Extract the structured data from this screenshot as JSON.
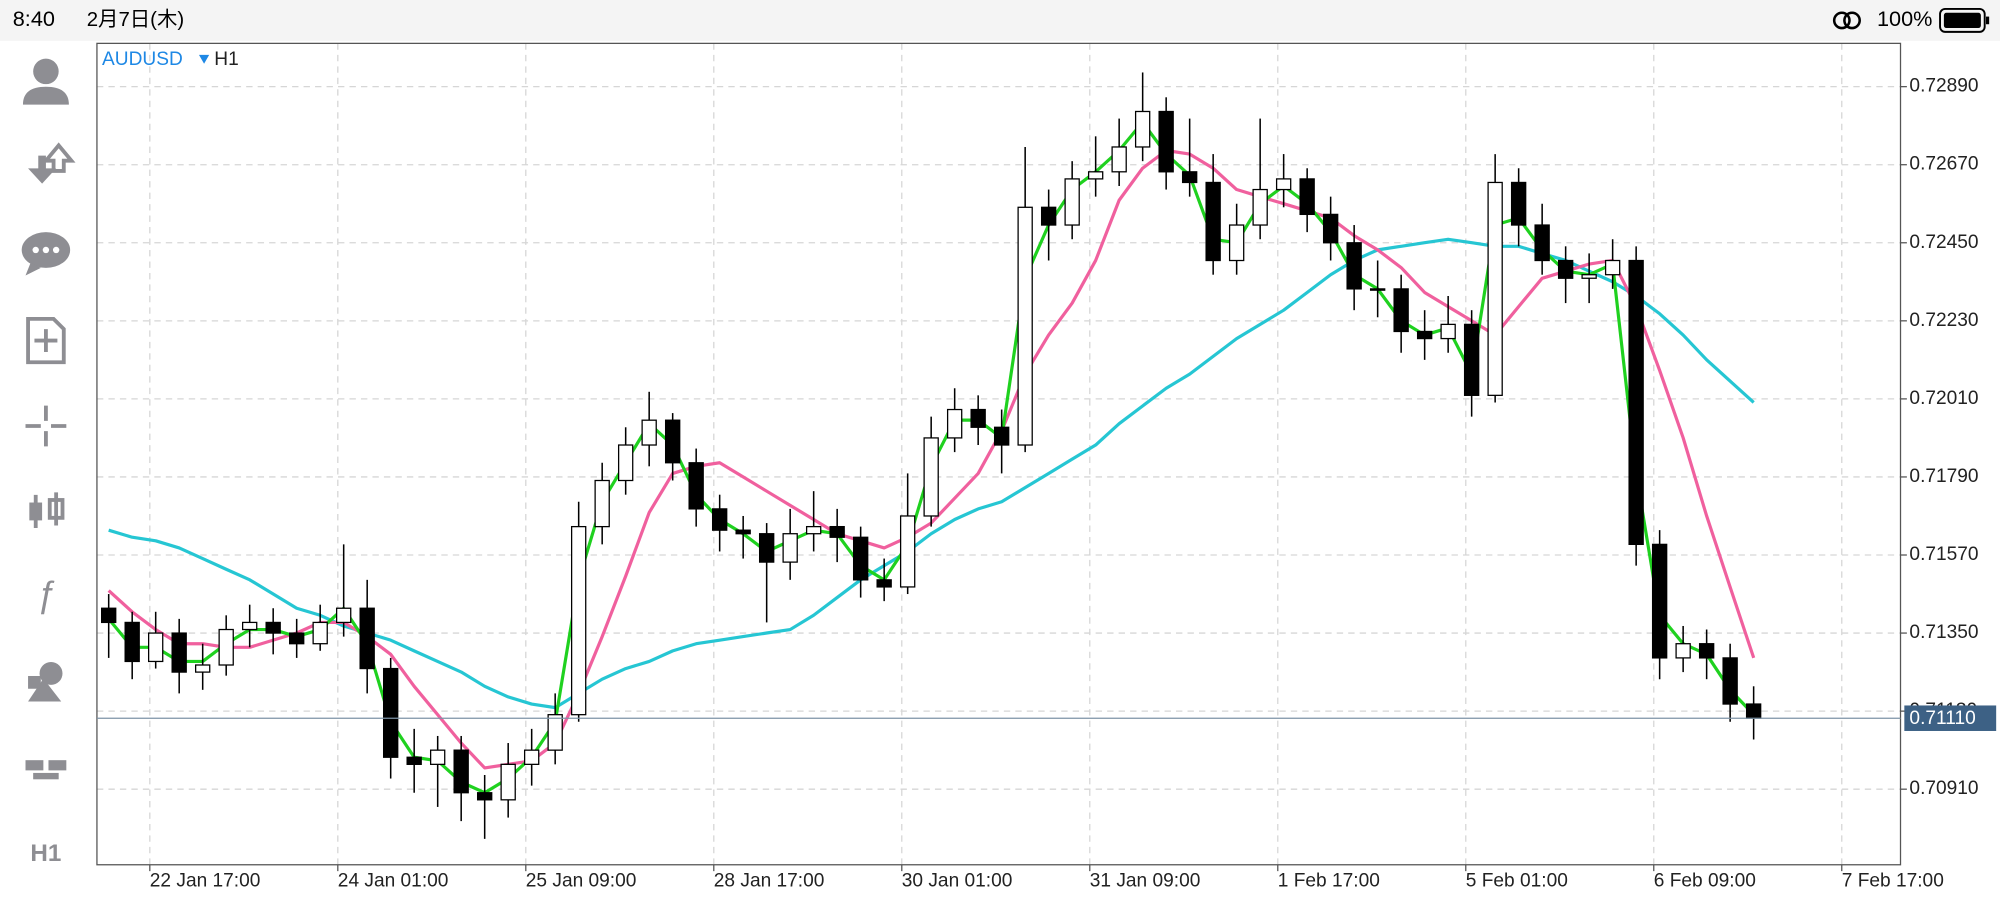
{
  "status_bar": {
    "time": "8:40",
    "date": "2月7日(木)",
    "battery": "100%"
  },
  "toolbar": {
    "timeframe": "H1"
  },
  "chart_data": {
    "type": "candlestick",
    "symbol": "AUDUSD",
    "timeframe": "H1",
    "grid": true,
    "xlim": [
      0,
      76.75
    ],
    "xticks": [
      {
        "value": 2.25,
        "label": "22 Jan 17:00"
      },
      {
        "value": 10.25,
        "label": "24 Jan 01:00"
      },
      {
        "value": 18.25,
        "label": "25 Jan 09:00"
      },
      {
        "value": 26.25,
        "label": "28 Jan 17:00"
      },
      {
        "value": 34.25,
        "label": "30 Jan 01:00"
      },
      {
        "value": 42.25,
        "label": "31 Jan 09:00"
      },
      {
        "value": 50.25,
        "label": "1 Feb 17:00"
      },
      {
        "value": 58.25,
        "label": "5 Feb 01:00"
      },
      {
        "value": 66.25,
        "label": "6 Feb 09:00"
      },
      {
        "value": 74.25,
        "label": "7 Feb 17:00"
      }
    ],
    "ylim": [
      0.70697,
      0.73012
    ],
    "yticks": [
      {
        "value": 0.7289,
        "label": "0.72890"
      },
      {
        "value": 0.7267,
        "label": "0.72670"
      },
      {
        "value": 0.7245,
        "label": "0.72450"
      },
      {
        "value": 0.7223,
        "label": "0.72230"
      },
      {
        "value": 0.7201,
        "label": "0.72010"
      },
      {
        "value": 0.7179,
        "label": "0.71790"
      },
      {
        "value": 0.7157,
        "label": "0.71570"
      },
      {
        "value": 0.7135,
        "label": "0.71350"
      },
      {
        "value": 0.7113,
        "label": "0.71130"
      },
      {
        "value": 0.7091,
        "label": "0.70910"
      }
    ],
    "current_price": {
      "value": 0.7111,
      "label": "0.71110"
    },
    "ohlc": [
      [
        0.7142,
        0.7146,
        0.7128,
        0.7138
      ],
      [
        0.7138,
        0.7141,
        0.7122,
        0.7127
      ],
      [
        0.7127,
        0.7141,
        0.7125,
        0.7135
      ],
      [
        0.7135,
        0.7139,
        0.7118,
        0.7124
      ],
      [
        0.7124,
        0.7132,
        0.7119,
        0.7126
      ],
      [
        0.7126,
        0.714,
        0.7123,
        0.7136
      ],
      [
        0.7136,
        0.7143,
        0.7131,
        0.7138
      ],
      [
        0.7138,
        0.7142,
        0.7129,
        0.7135
      ],
      [
        0.7135,
        0.7139,
        0.7128,
        0.7132
      ],
      [
        0.7132,
        0.7143,
        0.713,
        0.7138
      ],
      [
        0.7138,
        0.716,
        0.7134,
        0.7142
      ],
      [
        0.7142,
        0.715,
        0.7118,
        0.7125
      ],
      [
        0.7125,
        0.7128,
        0.7094,
        0.71
      ],
      [
        0.71,
        0.7108,
        0.709,
        0.7098
      ],
      [
        0.7098,
        0.7106,
        0.7086,
        0.7102
      ],
      [
        0.7102,
        0.7106,
        0.7082,
        0.709
      ],
      [
        0.709,
        0.7095,
        0.7077,
        0.7088
      ],
      [
        0.7088,
        0.7104,
        0.7083,
        0.7098
      ],
      [
        0.7098,
        0.7108,
        0.7092,
        0.7102
      ],
      [
        0.7102,
        0.7118,
        0.7098,
        0.7112
      ],
      [
        0.7112,
        0.7172,
        0.711,
        0.7165
      ],
      [
        0.7165,
        0.7183,
        0.716,
        0.7178
      ],
      [
        0.7178,
        0.7193,
        0.7174,
        0.7188
      ],
      [
        0.7188,
        0.7203,
        0.7182,
        0.7195
      ],
      [
        0.7195,
        0.7197,
        0.7178,
        0.7183
      ],
      [
        0.7183,
        0.7187,
        0.7165,
        0.717
      ],
      [
        0.717,
        0.7174,
        0.7158,
        0.7164
      ],
      [
        0.7164,
        0.7168,
        0.7156,
        0.7163
      ],
      [
        0.7163,
        0.7166,
        0.7138,
        0.7155
      ],
      [
        0.7155,
        0.717,
        0.715,
        0.7163
      ],
      [
        0.7163,
        0.7175,
        0.7158,
        0.7165
      ],
      [
        0.7165,
        0.717,
        0.7155,
        0.7162
      ],
      [
        0.7162,
        0.7165,
        0.7145,
        0.715
      ],
      [
        0.715,
        0.7156,
        0.7144,
        0.7148
      ],
      [
        0.7148,
        0.718,
        0.7146,
        0.7168
      ],
      [
        0.7168,
        0.7196,
        0.7165,
        0.719
      ],
      [
        0.719,
        0.7204,
        0.7186,
        0.7198
      ],
      [
        0.7198,
        0.7202,
        0.7188,
        0.7193
      ],
      [
        0.7193,
        0.7198,
        0.718,
        0.7188
      ],
      [
        0.7188,
        0.7272,
        0.7186,
        0.7255
      ],
      [
        0.7255,
        0.726,
        0.724,
        0.725
      ],
      [
        0.725,
        0.7268,
        0.7246,
        0.7263
      ],
      [
        0.7263,
        0.7275,
        0.7258,
        0.7265
      ],
      [
        0.7265,
        0.728,
        0.7261,
        0.7272
      ],
      [
        0.7272,
        0.7293,
        0.7268,
        0.7282
      ],
      [
        0.7282,
        0.7286,
        0.726,
        0.7265
      ],
      [
        0.7265,
        0.728,
        0.7258,
        0.7262
      ],
      [
        0.7262,
        0.727,
        0.7236,
        0.724
      ],
      [
        0.724,
        0.7256,
        0.7236,
        0.725
      ],
      [
        0.725,
        0.728,
        0.7246,
        0.726
      ],
      [
        0.726,
        0.727,
        0.7255,
        0.7263
      ],
      [
        0.7263,
        0.7266,
        0.7248,
        0.7253
      ],
      [
        0.7253,
        0.7258,
        0.724,
        0.7245
      ],
      [
        0.7245,
        0.725,
        0.7226,
        0.7232
      ],
      [
        0.7232,
        0.724,
        0.7224,
        0.7232
      ],
      [
        0.7232,
        0.7236,
        0.7214,
        0.722
      ],
      [
        0.722,
        0.7226,
        0.7212,
        0.7218
      ],
      [
        0.7218,
        0.723,
        0.7214,
        0.7222
      ],
      [
        0.7222,
        0.7226,
        0.7196,
        0.7202
      ],
      [
        0.7202,
        0.727,
        0.72,
        0.7262
      ],
      [
        0.7262,
        0.7266,
        0.7244,
        0.725
      ],
      [
        0.725,
        0.7256,
        0.7236,
        0.724
      ],
      [
        0.724,
        0.7244,
        0.7228,
        0.7235
      ],
      [
        0.7235,
        0.7242,
        0.7228,
        0.7236
      ],
      [
        0.7236,
        0.7246,
        0.7232,
        0.724
      ],
      [
        0.724,
        0.7244,
        0.7154,
        0.716
      ],
      [
        0.716,
        0.7164,
        0.7122,
        0.7128
      ],
      [
        0.7128,
        0.7137,
        0.7124,
        0.7132
      ],
      [
        0.7132,
        0.7136,
        0.7122,
        0.7128
      ],
      [
        0.7128,
        0.7132,
        0.711,
        0.7115
      ],
      [
        0.7115,
        0.712,
        0.7105,
        0.7111
      ]
    ],
    "series": [
      {
        "color": "#26c6d3",
        "values": [
          0.7164,
          0.7162,
          0.7161,
          0.7159,
          0.7156,
          0.7153,
          0.715,
          0.7146,
          0.7142,
          0.714,
          0.7137,
          0.7135,
          0.7133,
          0.713,
          0.7127,
          0.7124,
          0.712,
          0.7117,
          0.7115,
          0.7114,
          0.7118,
          0.7122,
          0.7125,
          0.7127,
          0.713,
          0.7132,
          0.7133,
          0.7134,
          0.7135,
          0.7136,
          0.714,
          0.7145,
          0.715,
          0.7154,
          0.7158,
          0.7163,
          0.7167,
          0.717,
          0.7172,
          0.7176,
          0.718,
          0.7184,
          0.7188,
          0.7194,
          0.7199,
          0.7204,
          0.7208,
          0.7213,
          0.7218,
          0.7222,
          0.7226,
          0.7231,
          0.7236,
          0.724,
          0.7243,
          0.7244,
          0.7245,
          0.7246,
          0.7245,
          0.7244,
          0.7244,
          0.7242,
          0.724,
          0.7237,
          0.7234,
          0.723,
          0.7225,
          0.7219,
          0.7212,
          0.7206,
          0.72
        ]
      },
      {
        "color": "#f0609e",
        "values": [
          0.7147,
          0.7141,
          0.7136,
          0.7132,
          0.7132,
          0.7131,
          0.7131,
          0.7133,
          0.7135,
          0.7138,
          0.7138,
          0.7134,
          0.7129,
          0.712,
          0.7112,
          0.7104,
          0.7097,
          0.7098,
          0.7099,
          0.7104,
          0.7118,
          0.7134,
          0.7151,
          0.7169,
          0.718,
          0.7182,
          0.7183,
          0.7179,
          0.7175,
          0.7171,
          0.7167,
          0.7163,
          0.7161,
          0.7159,
          0.7162,
          0.7166,
          0.7173,
          0.718,
          0.7192,
          0.7208,
          0.7219,
          0.7228,
          0.724,
          0.7257,
          0.7266,
          0.7271,
          0.727,
          0.7266,
          0.726,
          0.7258,
          0.7256,
          0.7254,
          0.7252,
          0.7247,
          0.7243,
          0.7238,
          0.7231,
          0.7227,
          0.7223,
          0.7219,
          0.7227,
          0.7235,
          0.7237,
          0.7239,
          0.724,
          0.7227,
          0.7209,
          0.719,
          0.7168,
          0.7148,
          0.7128
        ]
      },
      {
        "color": "#1fd11f",
        "values": [
          0.7139,
          0.7131,
          0.7131,
          0.7127,
          0.7127,
          0.7132,
          0.7136,
          0.7136,
          0.7134,
          0.7136,
          0.7142,
          0.7132,
          0.711,
          0.71,
          0.7099,
          0.7093,
          0.709,
          0.7094,
          0.71,
          0.711,
          0.715,
          0.7172,
          0.7183,
          0.7194,
          0.7188,
          0.7174,
          0.7167,
          0.7163,
          0.7158,
          0.7161,
          0.7164,
          0.7163,
          0.7154,
          0.715,
          0.716,
          0.7182,
          0.7195,
          0.7195,
          0.719,
          0.7235,
          0.725,
          0.726,
          0.7265,
          0.7271,
          0.7279,
          0.727,
          0.7264,
          0.7246,
          0.7245,
          0.7256,
          0.7261,
          0.7256,
          0.7248,
          0.7236,
          0.7232,
          0.7223,
          0.7219,
          0.7221,
          0.7208,
          0.725,
          0.7252,
          0.7243,
          0.7237,
          0.7236,
          0.7239,
          0.718,
          0.714,
          0.7132,
          0.7129,
          0.7119,
          0.7112
        ]
      }
    ]
  }
}
